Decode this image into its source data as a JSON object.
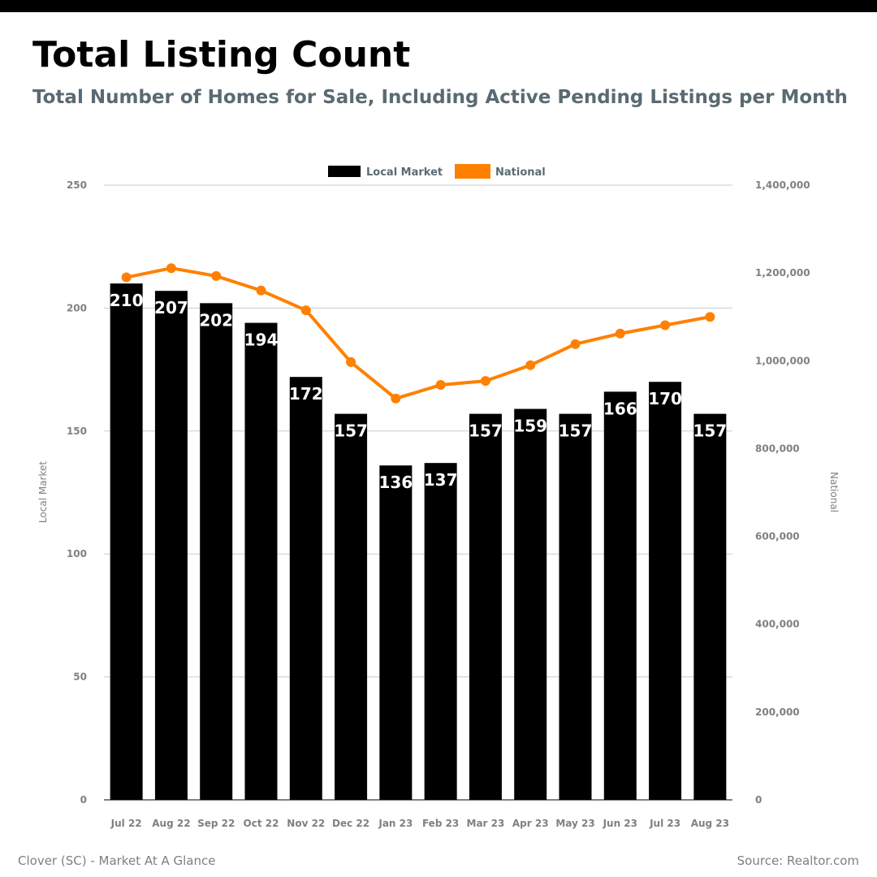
{
  "header": {
    "title": "Total Listing Count",
    "subtitle": "Total Number of Homes for Sale, Including Active Pending Listings per Month"
  },
  "footer": {
    "left": "Clover (SC) - Market At A Glance",
    "right": "Source: Realtor.com"
  },
  "colors": {
    "bar": "#000000",
    "line": "#ff8000",
    "grid": "#cccccc",
    "axis_text": "#808080",
    "legend_text": "#5a6a72"
  },
  "chart_data": {
    "type": "bar",
    "categories": [
      "Jul 22",
      "Aug 22",
      "Sep 22",
      "Oct 22",
      "Nov 22",
      "Dec 22",
      "Jan 23",
      "Feb 23",
      "Mar 23",
      "Apr 23",
      "May 23",
      "Jun 23",
      "Jul 23",
      "Aug 23"
    ],
    "series": [
      {
        "name": "Local Market",
        "type": "bar",
        "axis": "left",
        "values": [
          210,
          207,
          202,
          194,
          172,
          157,
          136,
          137,
          157,
          159,
          157,
          166,
          170,
          157
        ]
      },
      {
        "name": "National",
        "type": "line",
        "axis": "right",
        "values": [
          1190000,
          1211000,
          1193000,
          1160000,
          1115000,
          997000,
          914000,
          945000,
          954000,
          990000,
          1038000,
          1062000,
          1081000,
          1100000
        ]
      }
    ],
    "ylabel_left": "Local Market",
    "ylabel_right": "National",
    "ylim_left": [
      0,
      250
    ],
    "yticks_left": [
      "0",
      "50",
      "100",
      "150",
      "200",
      "250"
    ],
    "yticks_left_values": [
      0,
      50,
      100,
      150,
      200,
      250
    ],
    "ylim_right": [
      0,
      1400000
    ],
    "yticks_right": [
      "0",
      "200,000",
      "400,000",
      "600,000",
      "800,000",
      "1,000,000",
      "1,200,000",
      "1,400,000"
    ],
    "yticks_right_values": [
      0,
      200000,
      400000,
      600000,
      800000,
      1000000,
      1200000,
      1400000
    ],
    "grid": true,
    "legend_position": "top-center",
    "data_labels": true
  }
}
